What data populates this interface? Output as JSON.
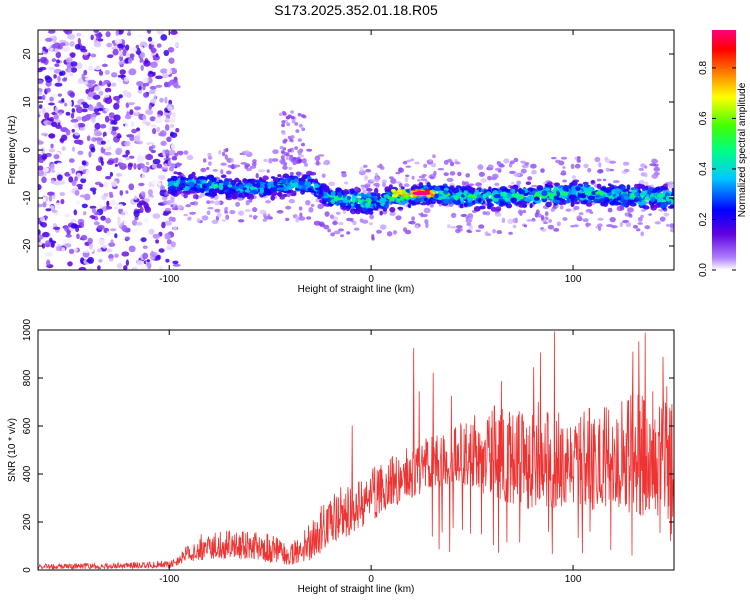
{
  "title": "S173.2025.352.01.18.R05",
  "colors": {
    "signal_line": "#ee3333",
    "axis": "#000000",
    "background": "#ffffff"
  },
  "chart_data": [
    {
      "type": "heatmap",
      "name": "spectrogram",
      "title": "S173.2025.352.01.18.R05",
      "xlabel": "Height of straight line (km)",
      "ylabel": "Frequency (Hz)",
      "xlim": [
        -165,
        150
      ],
      "ylim": [
        -25,
        25
      ],
      "x_ticks": [
        -100,
        0,
        100
      ],
      "y_ticks": [
        -20,
        -10,
        0,
        10,
        20
      ],
      "colorbar": {
        "label": "Normalized spectral amplitude",
        "range": [
          0,
          0.95
        ],
        "ticks": [
          0.0,
          0.2,
          0.4,
          0.6,
          0.8
        ],
        "colormap": "rainbow (purple-blue-cyan-green-yellow-orange-red-magenta)"
      },
      "features": {
        "noise_region_x": [
          -165,
          -100
        ],
        "noise_band_freq_range": [
          -25,
          25
        ],
        "signal_band_x": [
          -100,
          150
        ],
        "signal_band_center_freq": [
          {
            "x": -100,
            "y": -7
          },
          {
            "x": -60,
            "y": -8
          },
          {
            "x": -30,
            "y": -7
          },
          {
            "x": -20,
            "y": -10
          },
          {
            "x": 0,
            "y": -11
          },
          {
            "x": 20,
            "y": -9.5
          },
          {
            "x": 30,
            "y": -9
          },
          {
            "x": 60,
            "y": -10
          },
          {
            "x": 100,
            "y": -9
          },
          {
            "x": 150,
            "y": -10
          }
        ],
        "signal_band_width_hz": 6,
        "peak_amplitude_location": {
          "x": 25,
          "y": -9,
          "value": 0.95
        }
      }
    },
    {
      "type": "line",
      "name": "snr",
      "xlabel": "Height of straight line (km)",
      "ylabel": "SNR (10 * v/v)",
      "xlim": [
        -165,
        150
      ],
      "ylim": [
        0,
        1000
      ],
      "x_ticks": [
        -100,
        0,
        100
      ],
      "y_ticks": [
        0,
        200,
        400,
        600,
        800,
        1000
      ],
      "series": [
        {
          "name": "SNR",
          "envelope": {
            "x": [
              -165,
              -130,
              -100,
              -95,
              -85,
              -70,
              -50,
              -40,
              -30,
              -20,
              -10,
              0,
              10,
              20,
              30,
              40,
              50,
              60,
              80,
              100,
              120,
              140,
              150
            ],
            "lower": [
              5,
              5,
              10,
              20,
              40,
              50,
              30,
              20,
              40,
              100,
              150,
              200,
              260,
              300,
              340,
              360,
              340,
              300,
              250,
              260,
              240,
              220,
              200
            ],
            "upper": [
              25,
              30,
              40,
              70,
              150,
              170,
              150,
              110,
              200,
              330,
              380,
              420,
              480,
              520,
              560,
              600,
              640,
              690,
              650,
              660,
              700,
              750,
              720
            ],
            "spike_max": 1000
          }
        }
      ]
    }
  ]
}
